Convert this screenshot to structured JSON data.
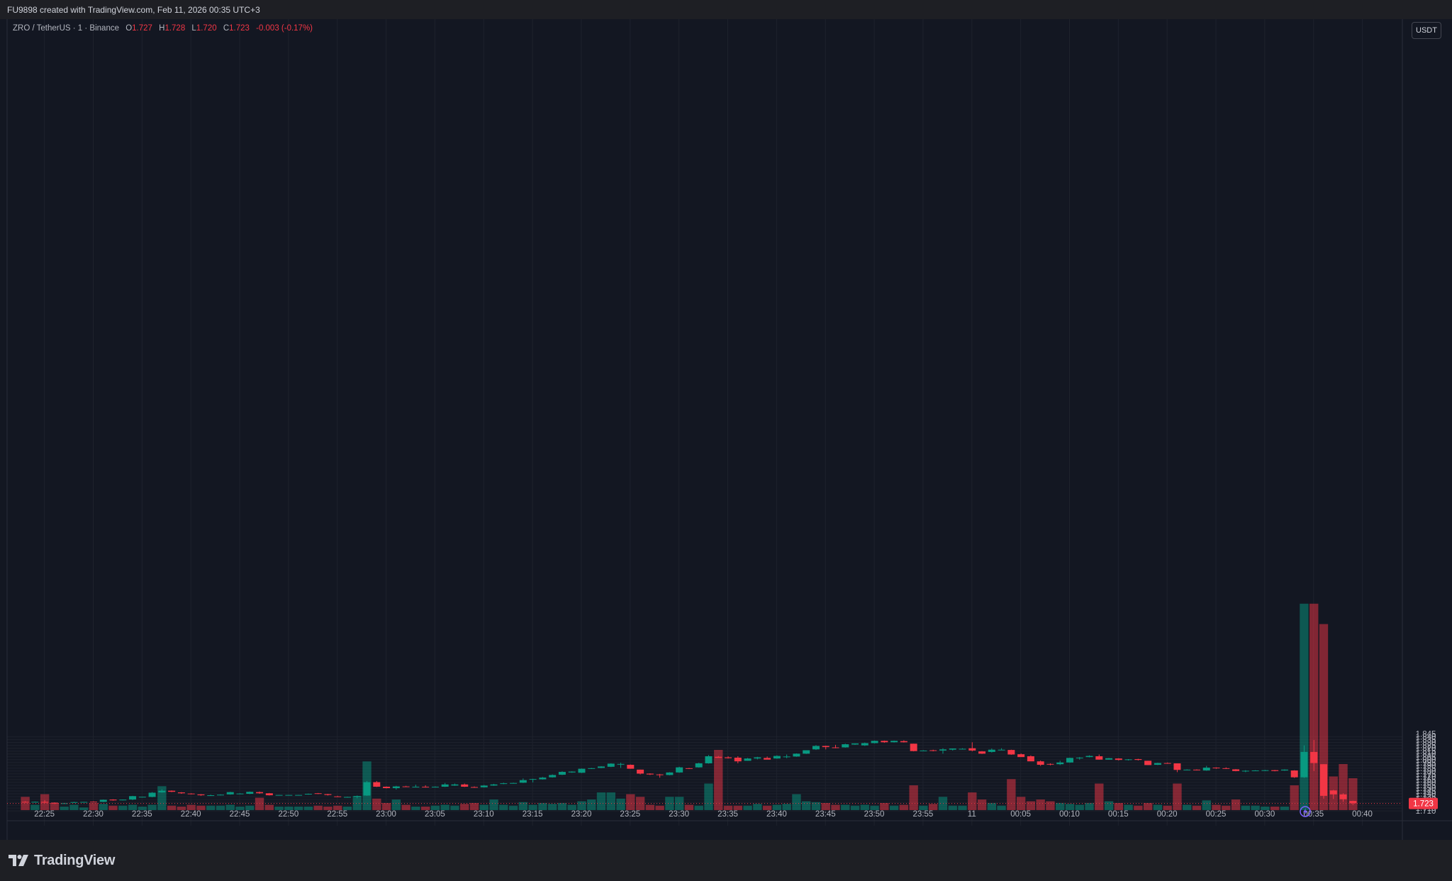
{
  "header": {
    "attribution": "FU9898 created with TradingView.com, Feb 11, 2026 00:35 UTC+3"
  },
  "legend": {
    "symbol": "ZRO / TetherUS · 1 · Binance",
    "open_label": "O",
    "open": "1.727",
    "high_label": "H",
    "high": "1.728",
    "low_label": "L",
    "low": "1.720",
    "close_label": "C",
    "close": "1.723",
    "change": "-0.003 (-0.17%)"
  },
  "price_scale": {
    "unit": "USDT",
    "last_price_label": "1.723"
  },
  "footer": {
    "brand": "TradingView"
  },
  "colors": {
    "background": "#131722",
    "up": "#089981",
    "down": "#f23645",
    "grid": "#1e222d",
    "text": "#b2b5be"
  },
  "chart_data": {
    "type": "candlestick",
    "title": "",
    "xlabel": "",
    "ylabel": "",
    "ylim": [
      1.7083,
      1.8445
    ],
    "y_ticks": [
      "1.710",
      "1.715",
      "1.720",
      "1.725",
      "1.730",
      "1.735",
      "1.740",
      "1.745",
      "1.750",
      "1.755",
      "1.760",
      "1.765",
      "1.770",
      "1.775",
      "1.780",
      "1.785",
      "1.790",
      "1.795",
      "1.800",
      "1.805",
      "1.810",
      "1.815",
      "1.820",
      "1.825",
      "1.830",
      "1.835",
      "1.840"
    ],
    "x_ticks": [
      "22:25",
      "22:30",
      "22:35",
      "22:40",
      "22:45",
      "22:50",
      "22:55",
      "23:00",
      "23:05",
      "23:10",
      "23:15",
      "23:20",
      "23:25",
      "23:30",
      "23:35",
      "23:40",
      "23:45",
      "23:50",
      "23:55",
      "11",
      "00:05",
      "00:10",
      "00:15",
      "00:20",
      "00:25",
      "00:30",
      "00:35",
      "00:40"
    ],
    "x_tick_start": "22:25",
    "x_tick_step_minutes": 5,
    "first_bar": "22:23",
    "interval_minutes": 1,
    "grid": true,
    "last_price": 1.723,
    "bars": [
      [
        1.726,
        1.727,
        1.7245,
        1.7255,
        15
      ],
      [
        1.7255,
        1.7265,
        1.725,
        1.726,
        6
      ],
      [
        1.726,
        1.729,
        1.724,
        1.7245,
        18
      ],
      [
        1.7245,
        1.725,
        1.722,
        1.723,
        8
      ],
      [
        1.723,
        1.724,
        1.7228,
        1.7235,
        4
      ],
      [
        1.725,
        1.726,
        1.724,
        1.7255,
        6
      ],
      [
        1.7255,
        1.726,
        1.7252,
        1.7258,
        3
      ],
      [
        1.7262,
        1.7268,
        1.725,
        1.7255,
        8
      ],
      [
        1.726,
        1.73,
        1.7255,
        1.7295,
        7
      ],
      [
        1.73,
        1.7305,
        1.728,
        1.7285,
        5
      ],
      [
        1.729,
        1.73,
        1.7285,
        1.7298,
        5
      ],
      [
        1.73,
        1.7365,
        1.729,
        1.736,
        6
      ],
      [
        1.7345,
        1.735,
        1.734,
        1.7348,
        4
      ],
      [
        1.7345,
        1.743,
        1.734,
        1.742,
        6
      ],
      [
        1.7425,
        1.748,
        1.742,
        1.7455,
        27
      ],
      [
        1.7455,
        1.746,
        1.743,
        1.7435,
        5
      ],
      [
        1.7425,
        1.743,
        1.74,
        1.741,
        4
      ],
      [
        1.7405,
        1.741,
        1.739,
        1.7395,
        6
      ],
      [
        1.739,
        1.7395,
        1.7365,
        1.7375,
        5
      ],
      [
        1.7365,
        1.7385,
        1.7362,
        1.7375,
        5
      ],
      [
        1.7375,
        1.739,
        1.7372,
        1.7385,
        5
      ],
      [
        1.739,
        1.7435,
        1.7385,
        1.743,
        6
      ],
      [
        1.7405,
        1.741,
        1.74,
        1.7405,
        4
      ],
      [
        1.74,
        1.744,
        1.7395,
        1.7435,
        5
      ],
      [
        1.743,
        1.744,
        1.74,
        1.741,
        14
      ],
      [
        1.741,
        1.7415,
        1.737,
        1.7375,
        6
      ],
      [
        1.738,
        1.7382,
        1.7378,
        1.738,
        4
      ],
      [
        1.738,
        1.7382,
        1.7378,
        1.738,
        4
      ],
      [
        1.738,
        1.7382,
        1.7375,
        1.738,
        4
      ],
      [
        1.739,
        1.7405,
        1.7385,
        1.74,
        4
      ],
      [
        1.741,
        1.7415,
        1.7395,
        1.74,
        5
      ],
      [
        1.7395,
        1.74,
        1.737,
        1.738,
        4
      ],
      [
        1.7355,
        1.7365,
        1.7345,
        1.735,
        5
      ],
      [
        1.7345,
        1.735,
        1.734,
        1.7345,
        4
      ],
      [
        1.735,
        1.737,
        1.7322,
        1.7362,
        16
      ],
      [
        1.737,
        1.7625,
        1.7365,
        1.7605,
        55
      ],
      [
        1.7605,
        1.7625,
        1.752,
        1.7525,
        13
      ],
      [
        1.7525,
        1.753,
        1.7495,
        1.75,
        8
      ],
      [
        1.75,
        1.754,
        1.7475,
        1.753,
        12
      ],
      [
        1.753,
        1.754,
        1.752,
        1.752,
        6
      ],
      [
        1.7525,
        1.756,
        1.752,
        1.7525,
        4
      ],
      [
        1.7525,
        1.755,
        1.751,
        1.752,
        4
      ],
      [
        1.752,
        1.753,
        1.751,
        1.7525,
        5
      ],
      [
        1.7525,
        1.759,
        1.752,
        1.7565,
        6
      ],
      [
        1.7545,
        1.758,
        1.754,
        1.7565,
        5
      ],
      [
        1.7565,
        1.758,
        1.752,
        1.7525,
        7
      ],
      [
        1.752,
        1.753,
        1.7505,
        1.751,
        8
      ],
      [
        1.7515,
        1.7555,
        1.751,
        1.7545,
        6
      ],
      [
        1.7545,
        1.7575,
        1.754,
        1.7565,
        12
      ],
      [
        1.7575,
        1.7595,
        1.757,
        1.7585,
        6
      ],
      [
        1.7585,
        1.7595,
        1.758,
        1.759,
        5
      ],
      [
        1.7595,
        1.767,
        1.759,
        1.764,
        9
      ],
      [
        1.7655,
        1.7665,
        1.76,
        1.766,
        6
      ],
      [
        1.7655,
        1.7695,
        1.765,
        1.7685,
        8
      ],
      [
        1.769,
        1.774,
        1.7685,
        1.773,
        7
      ],
      [
        1.7735,
        1.7795,
        1.773,
        1.7785,
        8
      ],
      [
        1.7775,
        1.7795,
        1.777,
        1.779,
        6
      ],
      [
        1.777,
        1.7845,
        1.7765,
        1.784,
        10
      ],
      [
        1.784,
        1.7855,
        1.7835,
        1.785,
        12
      ],
      [
        1.7855,
        1.7885,
        1.785,
        1.788,
        20
      ],
      [
        1.7875,
        1.7935,
        1.787,
        1.793,
        20
      ],
      [
        1.7925,
        1.7945,
        1.7855,
        1.7925,
        13
      ],
      [
        1.791,
        1.7915,
        1.784,
        1.784,
        18
      ],
      [
        1.7825,
        1.7825,
        1.774,
        1.7755,
        15
      ],
      [
        1.7755,
        1.776,
        1.773,
        1.774,
        6
      ],
      [
        1.774,
        1.775,
        1.7683,
        1.773,
        5
      ],
      [
        1.773,
        1.778,
        1.7725,
        1.7775,
        15
      ],
      [
        1.7775,
        1.7875,
        1.777,
        1.7865,
        15
      ],
      [
        1.785,
        1.7855,
        1.7835,
        1.7845,
        6
      ],
      [
        1.7865,
        1.7945,
        1.786,
        1.7935,
        5
      ],
      [
        1.7935,
        1.808,
        1.793,
        1.806,
        30
      ],
      [
        1.805,
        1.8065,
        1.8035,
        1.803,
        68
      ],
      [
        1.804,
        1.806,
        1.802,
        1.8025,
        5
      ],
      [
        1.8035,
        1.806,
        1.7935,
        1.797,
        5
      ],
      [
        1.798,
        1.803,
        1.798,
        1.802,
        5
      ],
      [
        1.802,
        1.805,
        1.8005,
        1.804,
        7
      ],
      [
        1.803,
        1.8055,
        1.8015,
        1.8,
        5
      ],
      [
        1.802,
        1.8075,
        1.8015,
        1.8065,
        6
      ],
      [
        1.8045,
        1.809,
        1.8025,
        1.8055,
        7
      ],
      [
        1.8055,
        1.811,
        1.805,
        1.8105,
        18
      ],
      [
        1.8105,
        1.816,
        1.81,
        1.8165,
        10
      ],
      [
        1.818,
        1.8255,
        1.817,
        1.824,
        9
      ],
      [
        1.824,
        1.8245,
        1.818,
        1.822,
        8
      ],
      [
        1.8215,
        1.826,
        1.82,
        1.821,
        6
      ],
      [
        1.8215,
        1.828,
        1.821,
        1.827,
        6
      ],
      [
        1.8265,
        1.8285,
        1.826,
        1.8285,
        5
      ],
      [
        1.825,
        1.83,
        1.824,
        1.829,
        6
      ],
      [
        1.829,
        1.8335,
        1.8285,
        1.833,
        5
      ],
      [
        1.833,
        1.8335,
        1.8295,
        1.8305,
        8
      ],
      [
        1.8305,
        1.8335,
        1.83,
        1.833,
        5
      ],
      [
        1.8325,
        1.834,
        1.83,
        1.8305,
        6
      ],
      [
        1.828,
        1.828,
        1.8145,
        1.815,
        28
      ],
      [
        1.8155,
        1.8165,
        1.815,
        1.816,
        5
      ],
      [
        1.8165,
        1.8175,
        1.8145,
        1.816,
        7
      ],
      [
        1.816,
        1.82,
        1.8105,
        1.818,
        15
      ],
      [
        1.8175,
        1.8195,
        1.816,
        1.8195,
        5
      ],
      [
        1.8185,
        1.82,
        1.818,
        1.819,
        5
      ],
      [
        1.82,
        1.8305,
        1.8145,
        1.816,
        20
      ],
      [
        1.8145,
        1.815,
        1.81,
        1.8105,
        12
      ],
      [
        1.8135,
        1.8195,
        1.8125,
        1.8175,
        8
      ],
      [
        1.8175,
        1.82,
        1.817,
        1.8175,
        5
      ],
      [
        1.817,
        1.8175,
        1.8085,
        1.809,
        35
      ],
      [
        1.8095,
        1.811,
        1.805,
        1.8045,
        15
      ],
      [
        1.806,
        1.8075,
        1.7975,
        1.797,
        10
      ],
      [
        1.797,
        1.7985,
        1.789,
        1.791,
        12
      ],
      [
        1.7925,
        1.7935,
        1.79,
        1.7915,
        10
      ],
      [
        1.792,
        1.798,
        1.7905,
        1.795,
        8
      ],
      [
        1.795,
        1.8035,
        1.7945,
        1.803,
        7
      ],
      [
        1.803,
        1.8045,
        1.8,
        1.8035,
        6
      ],
      [
        1.8045,
        1.8075,
        1.804,
        1.8065,
        8
      ],
      [
        1.806,
        1.809,
        1.8,
        1.8,
        30
      ],
      [
        1.8,
        1.803,
        1.8,
        1.8025,
        10
      ],
      [
        1.802,
        1.8025,
        1.7985,
        1.7995,
        8
      ],
      [
        1.7995,
        1.801,
        1.7985,
        1.8005,
        6
      ],
      [
        1.801,
        1.8015,
        1.7985,
        1.7995,
        5
      ],
      [
        1.798,
        1.798,
        1.7905,
        1.7905,
        8
      ],
      [
        1.791,
        1.7945,
        1.7905,
        1.794,
        6
      ],
      [
        1.794,
        1.795,
        1.793,
        1.7935,
        5
      ],
      [
        1.7935,
        1.7935,
        1.778,
        1.782,
        30
      ],
      [
        1.782,
        1.783,
        1.7815,
        1.7825,
        6
      ],
      [
        1.7825,
        1.783,
        1.781,
        1.7815,
        5
      ],
      [
        1.781,
        1.789,
        1.7805,
        1.786,
        11
      ],
      [
        1.786,
        1.7865,
        1.784,
        1.785,
        6
      ],
      [
        1.785,
        1.7865,
        1.7835,
        1.7845,
        5
      ],
      [
        1.783,
        1.7835,
        1.7795,
        1.78,
        12
      ],
      [
        1.78,
        1.7815,
        1.778,
        1.7805,
        5
      ],
      [
        1.7805,
        1.7815,
        1.78,
        1.781,
        5
      ],
      [
        1.7815,
        1.782,
        1.78,
        1.7815,
        4
      ],
      [
        1.7815,
        1.782,
        1.7795,
        1.78,
        4
      ],
      [
        1.781,
        1.783,
        1.7805,
        1.7825,
        4
      ],
      [
        1.781,
        1.7815,
        1.768,
        1.769,
        28
      ],
      [
        1.769,
        1.825,
        1.768,
        1.8135,
        233
      ],
      [
        1.8135,
        1.8345,
        1.78,
        1.794,
        233
      ],
      [
        1.792,
        1.792,
        1.7315,
        1.7365,
        210
      ],
      [
        1.746,
        1.747,
        1.731,
        1.739,
        38
      ],
      [
        1.739,
        1.741,
        1.726,
        1.7305,
        52
      ],
      [
        1.7275,
        1.728,
        1.7205,
        1.7235,
        36
      ]
    ]
  }
}
